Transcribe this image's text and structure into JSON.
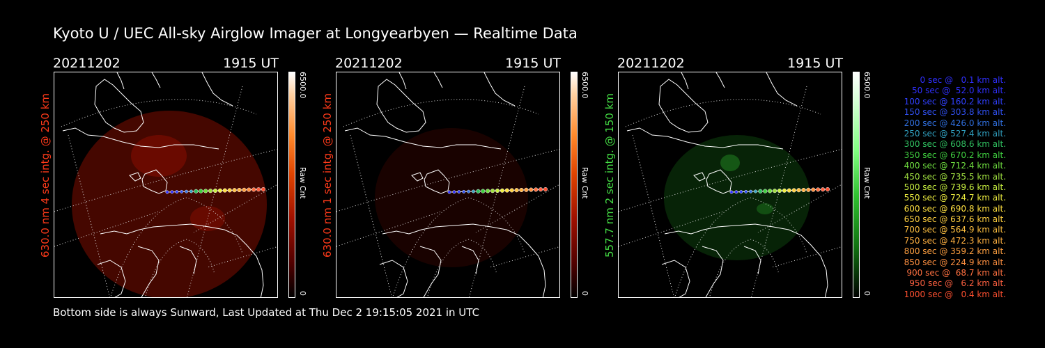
{
  "title": "Kyoto U / UEC All-sky Airglow Imager at Longyearbyen — Realtime Data",
  "footer": "Bottom side is always Sunward, Last Updated at Thu Dec  2 19:15:05 2021 in UTC",
  "panels": [
    {
      "date": "20211202",
      "time": "1915 UT",
      "ylabel": "630.0 nm 4 sec intg. @ 250 km",
      "label_color": "#ff3a1a",
      "cbar_max": "6500.0",
      "cbar_unit": "Raw Cnt",
      "cbar_min": "0"
    },
    {
      "date": "20211202",
      "time": "1915 UT",
      "ylabel": "630.0 nm 1 sec intg. @ 250 km",
      "label_color": "#ff3a1a",
      "cbar_max": "6500.0",
      "cbar_unit": "Raw Cnt",
      "cbar_min": "0"
    },
    {
      "date": "20211202",
      "time": "1915 UT",
      "ylabel": "557.7 nm 2 sec intg. @ 150 km",
      "label_color": "#44dd44",
      "cbar_max": "6500.0",
      "cbar_unit": "Raw Cnt",
      "cbar_min": "0"
    }
  ],
  "legend": [
    {
      "text": "0 sec @   0.1 km alt.",
      "color": "#3030ff"
    },
    {
      "text": "50 sec @  52.0 km alt.",
      "color": "#3030ff"
    },
    {
      "text": "100 sec @ 160.2 km alt.",
      "color": "#3040ff"
    },
    {
      "text": "150 sec @ 303.8 km alt.",
      "color": "#3050f0"
    },
    {
      "text": "200 sec @ 426.0 km alt.",
      "color": "#3070e0"
    },
    {
      "text": "250 sec @ 527.4 km alt.",
      "color": "#30a0c0"
    },
    {
      "text": "300 sec @ 608.6 km alt.",
      "color": "#30c060"
    },
    {
      "text": "350 sec @ 670.2 km alt.",
      "color": "#40d040"
    },
    {
      "text": "400 sec @ 712.4 km alt.",
      "color": "#70e040"
    },
    {
      "text": "450 sec @ 735.5 km alt.",
      "color": "#a0e040"
    },
    {
      "text": "500 sec @ 739.6 km alt.",
      "color": "#c8f040"
    },
    {
      "text": "550 sec @ 724.7 km alt.",
      "color": "#f0f040"
    },
    {
      "text": "600 sec @ 690.8 km alt.",
      "color": "#ffe040"
    },
    {
      "text": "650 sec @ 637.6 km alt.",
      "color": "#ffd040"
    },
    {
      "text": "700 sec @ 564.9 km alt.",
      "color": "#ffc040"
    },
    {
      "text": "750 sec @ 472.3 km alt.",
      "color": "#ffb040"
    },
    {
      "text": "800 sec @ 359.2 km alt.",
      "color": "#ffa040"
    },
    {
      "text": "850 sec @ 224.9 km alt.",
      "color": "#ff9040"
    },
    {
      "text": "900 sec @  68.7 km alt.",
      "color": "#ff7040"
    },
    {
      "text": "950 sec @   6.2 km alt.",
      "color": "#ff6040"
    },
    {
      "text": "1000 sec @   0.4 km alt.",
      "color": "#ff5030"
    }
  ],
  "trajectory_colors": [
    "#3030ff",
    "#3030ff",
    "#3040ff",
    "#3050f0",
    "#3070e0",
    "#30a0c0",
    "#30c060",
    "#40d040",
    "#70e040",
    "#a0e040",
    "#c8f040",
    "#f0f040",
    "#ffe040",
    "#ffd040",
    "#ffc040",
    "#ffb040",
    "#ffa040",
    "#ff9040",
    "#ff7040",
    "#ff6040",
    "#ff5030"
  ]
}
